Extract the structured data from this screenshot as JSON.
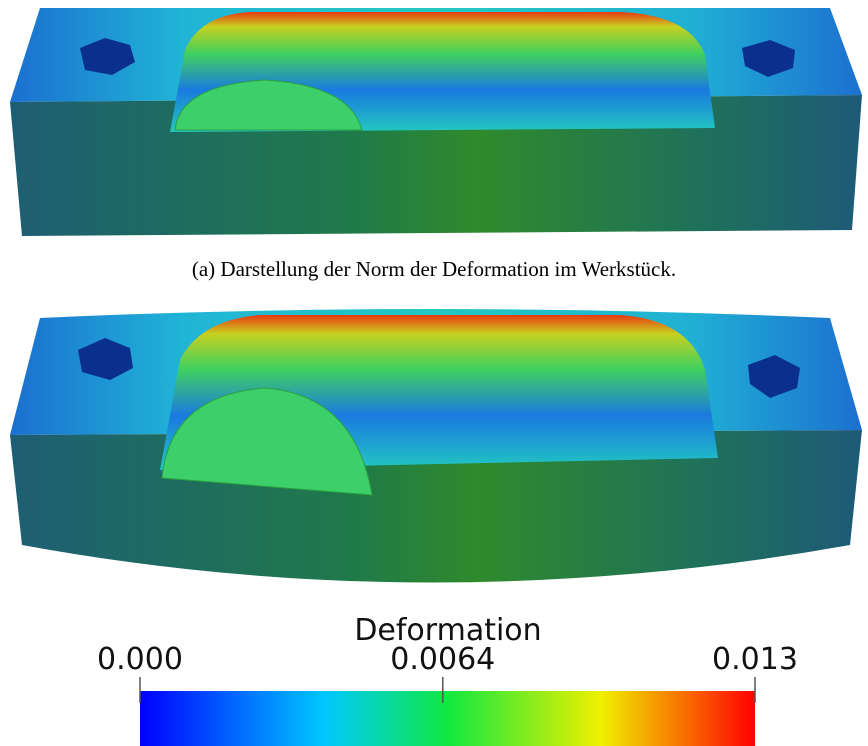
{
  "figure": {
    "caption_a": "(a) Darstellung der Norm der Deformation im Werkstück.",
    "colorbar": {
      "title": "Deformation",
      "range": [
        0,
        0.013
      ],
      "ticks": [
        {
          "value": 0,
          "label": "0.000"
        },
        0.0064,
        0.013
      ]
    }
  }
}
